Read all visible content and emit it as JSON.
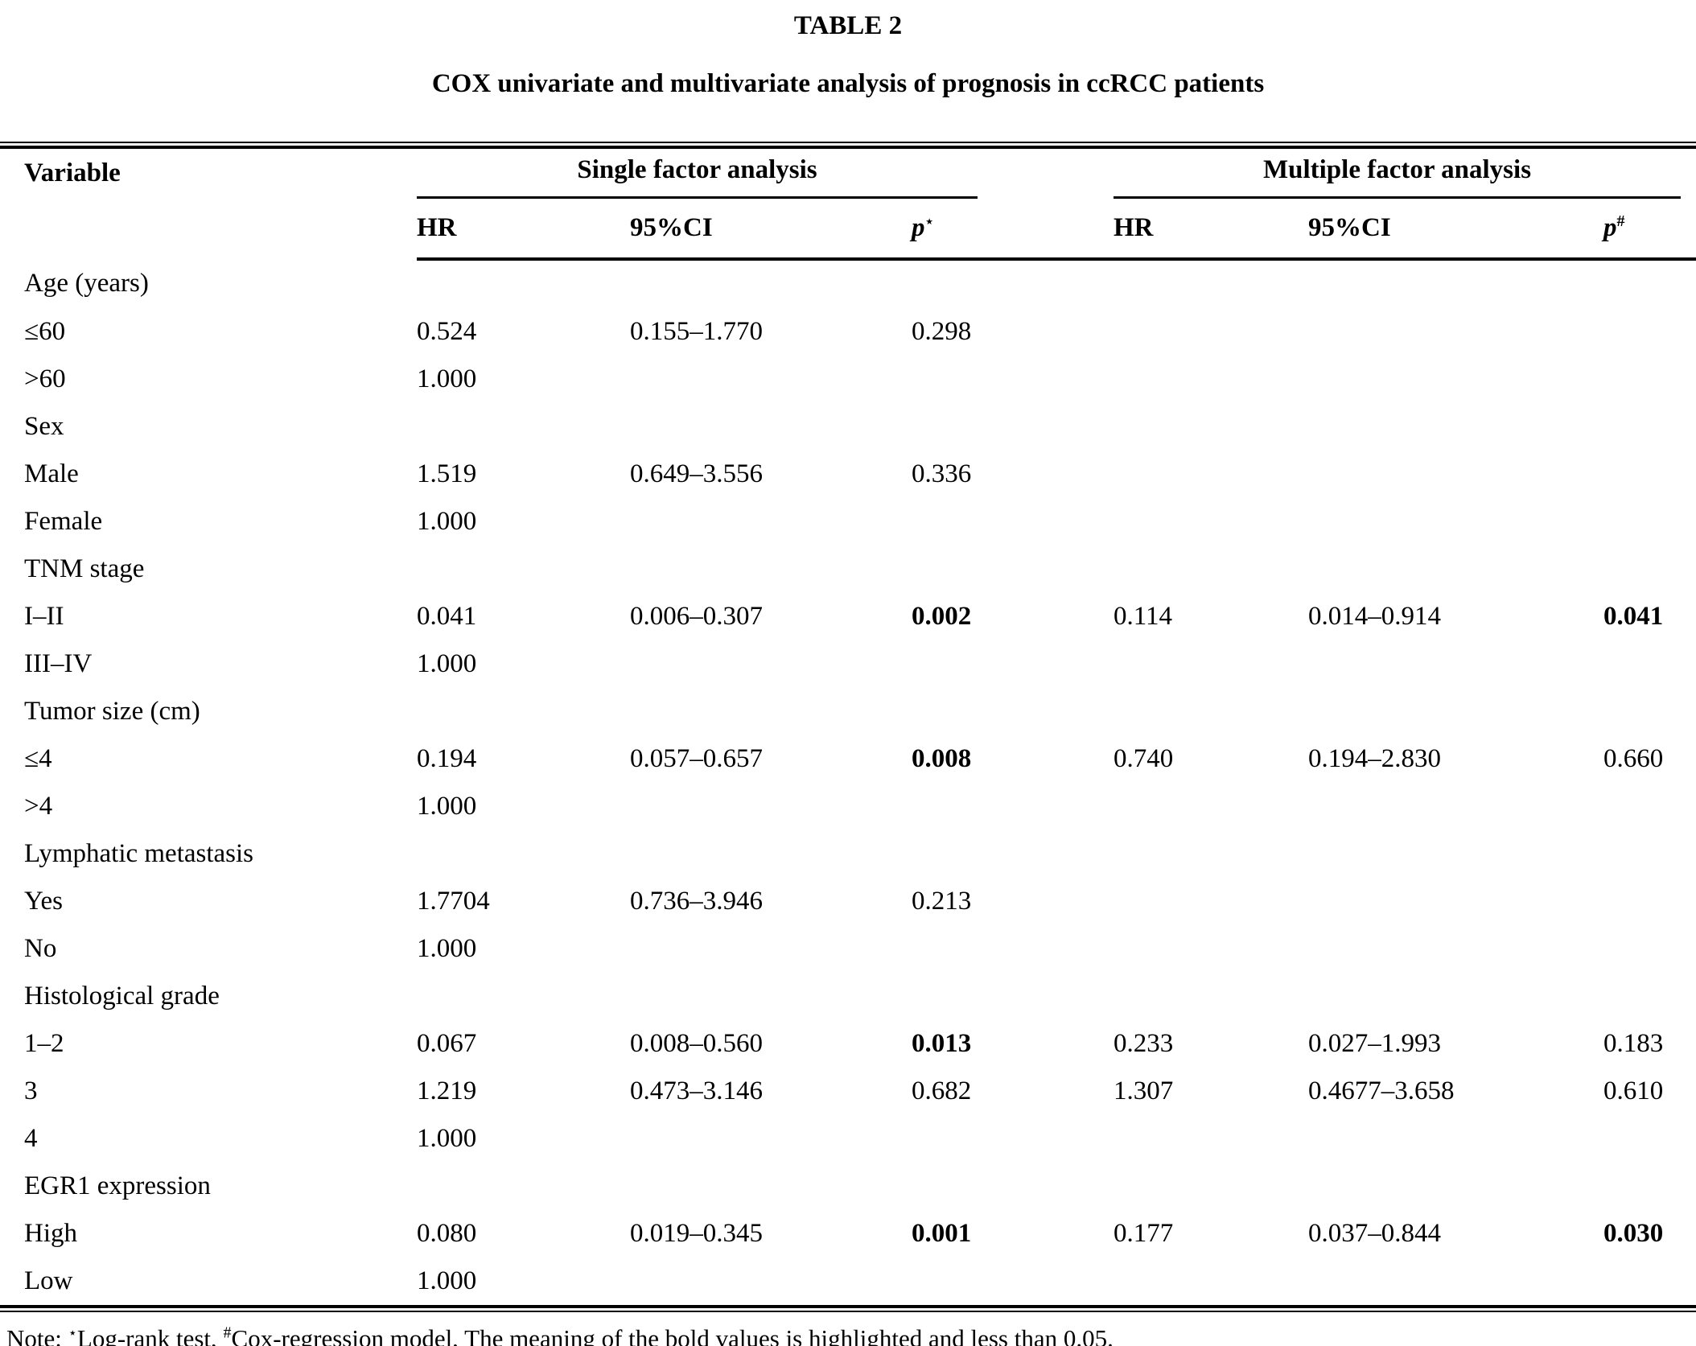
{
  "table_label": "TABLE 2",
  "title": "COX univariate and multivariate analysis of prognosis in ccRCC patients",
  "header": {
    "variable": "Variable",
    "single_group": "Single factor analysis",
    "multiple_group": "Multiple factor analysis",
    "hr": "HR",
    "ci": "95%CI",
    "p": "p",
    "p_single_marker": "⋆",
    "p_multiple_marker": "#"
  },
  "rows": [
    {
      "label": "Age (years)",
      "s_hr": "",
      "s_ci": "",
      "s_p": "",
      "m_hr": "",
      "m_ci": "",
      "m_p": "",
      "bold_s_p": false,
      "bold_m_p": false
    },
    {
      "label": "≤60",
      "s_hr": "0.524",
      "s_ci": "0.155–1.770",
      "s_p": "0.298",
      "m_hr": "",
      "m_ci": "",
      "m_p": "",
      "bold_s_p": false,
      "bold_m_p": false
    },
    {
      "label": ">60",
      "s_hr": "1.000",
      "s_ci": "",
      "s_p": "",
      "m_hr": "",
      "m_ci": "",
      "m_p": "",
      "bold_s_p": false,
      "bold_m_p": false
    },
    {
      "label": "Sex",
      "s_hr": "",
      "s_ci": "",
      "s_p": "",
      "m_hr": "",
      "m_ci": "",
      "m_p": "",
      "bold_s_p": false,
      "bold_m_p": false
    },
    {
      "label": "Male",
      "s_hr": "1.519",
      "s_ci": "0.649–3.556",
      "s_p": "0.336",
      "m_hr": "",
      "m_ci": "",
      "m_p": "",
      "bold_s_p": false,
      "bold_m_p": false
    },
    {
      "label": "Female",
      "s_hr": "1.000",
      "s_ci": "",
      "s_p": "",
      "m_hr": "",
      "m_ci": "",
      "m_p": "",
      "bold_s_p": false,
      "bold_m_p": false
    },
    {
      "label": "TNM stage",
      "s_hr": "",
      "s_ci": "",
      "s_p": "",
      "m_hr": "",
      "m_ci": "",
      "m_p": "",
      "bold_s_p": false,
      "bold_m_p": false
    },
    {
      "label": "I–II",
      "s_hr": "0.041",
      "s_ci": "0.006–0.307",
      "s_p": "0.002",
      "m_hr": "0.114",
      "m_ci": "0.014–0.914",
      "m_p": "0.041",
      "bold_s_p": true,
      "bold_m_p": true
    },
    {
      "label": "III–IV",
      "s_hr": "1.000",
      "s_ci": "",
      "s_p": "",
      "m_hr": "",
      "m_ci": "",
      "m_p": "",
      "bold_s_p": false,
      "bold_m_p": false
    },
    {
      "label": "Tumor size (cm)",
      "s_hr": "",
      "s_ci": "",
      "s_p": "",
      "m_hr": "",
      "m_ci": "",
      "m_p": "",
      "bold_s_p": false,
      "bold_m_p": false
    },
    {
      "label": "≤4",
      "s_hr": "0.194",
      "s_ci": "0.057–0.657",
      "s_p": "0.008",
      "m_hr": "0.740",
      "m_ci": "0.194–2.830",
      "m_p": "0.660",
      "bold_s_p": true,
      "bold_m_p": false
    },
    {
      "label": ">4",
      "s_hr": "1.000",
      "s_ci": "",
      "s_p": "",
      "m_hr": "",
      "m_ci": "",
      "m_p": "",
      "bold_s_p": false,
      "bold_m_p": false
    },
    {
      "label": "Lymphatic metastasis",
      "s_hr": "",
      "s_ci": "",
      "s_p": "",
      "m_hr": "",
      "m_ci": "",
      "m_p": "",
      "bold_s_p": false,
      "bold_m_p": false
    },
    {
      "label": "Yes",
      "s_hr": "1.7704",
      "s_ci": "0.736–3.946",
      "s_p": "0.213",
      "m_hr": "",
      "m_ci": "",
      "m_p": "",
      "bold_s_p": false,
      "bold_m_p": false
    },
    {
      "label": "No",
      "s_hr": "1.000",
      "s_ci": "",
      "s_p": "",
      "m_hr": "",
      "m_ci": "",
      "m_p": "",
      "bold_s_p": false,
      "bold_m_p": false
    },
    {
      "label": "Histological grade",
      "s_hr": "",
      "s_ci": "",
      "s_p": "",
      "m_hr": "",
      "m_ci": "",
      "m_p": "",
      "bold_s_p": false,
      "bold_m_p": false
    },
    {
      "label": "1–2",
      "s_hr": "0.067",
      "s_ci": "0.008–0.560",
      "s_p": "0.013",
      "m_hr": "0.233",
      "m_ci": "0.027–1.993",
      "m_p": "0.183",
      "bold_s_p": true,
      "bold_m_p": false
    },
    {
      "label": "3",
      "s_hr": "1.219",
      "s_ci": "0.473–3.146",
      "s_p": "0.682",
      "m_hr": "1.307",
      "m_ci": "0.4677–3.658",
      "m_p": "0.610",
      "bold_s_p": false,
      "bold_m_p": false
    },
    {
      "label": "4",
      "s_hr": "1.000",
      "s_ci": "",
      "s_p": "",
      "m_hr": "",
      "m_ci": "",
      "m_p": "",
      "bold_s_p": false,
      "bold_m_p": false
    },
    {
      "label": "EGR1 expression",
      "s_hr": "",
      "s_ci": "",
      "s_p": "",
      "m_hr": "",
      "m_ci": "",
      "m_p": "",
      "bold_s_p": false,
      "bold_m_p": false
    },
    {
      "label": "High",
      "s_hr": "0.080",
      "s_ci": "0.019–0.345",
      "s_p": "0.001",
      "m_hr": "0.177",
      "m_ci": "0.037–0.844",
      "m_p": "0.030",
      "bold_s_p": true,
      "bold_m_p": true
    },
    {
      "label": "Low",
      "s_hr": "1.000",
      "s_ci": "",
      "s_p": "",
      "m_hr": "",
      "m_ci": "",
      "m_p": "",
      "bold_s_p": false,
      "bold_m_p": false
    }
  ],
  "footnote": {
    "prefix": "Note: ",
    "marker1": "⋆",
    "text1": "Log-rank test, ",
    "marker2": "#",
    "text2": "Cox-regression model, The meaning of the bold values is highlighted and less than 0.05."
  },
  "colors": {
    "text": "#000000",
    "background": "#ffffff",
    "rule": "#000000"
  }
}
